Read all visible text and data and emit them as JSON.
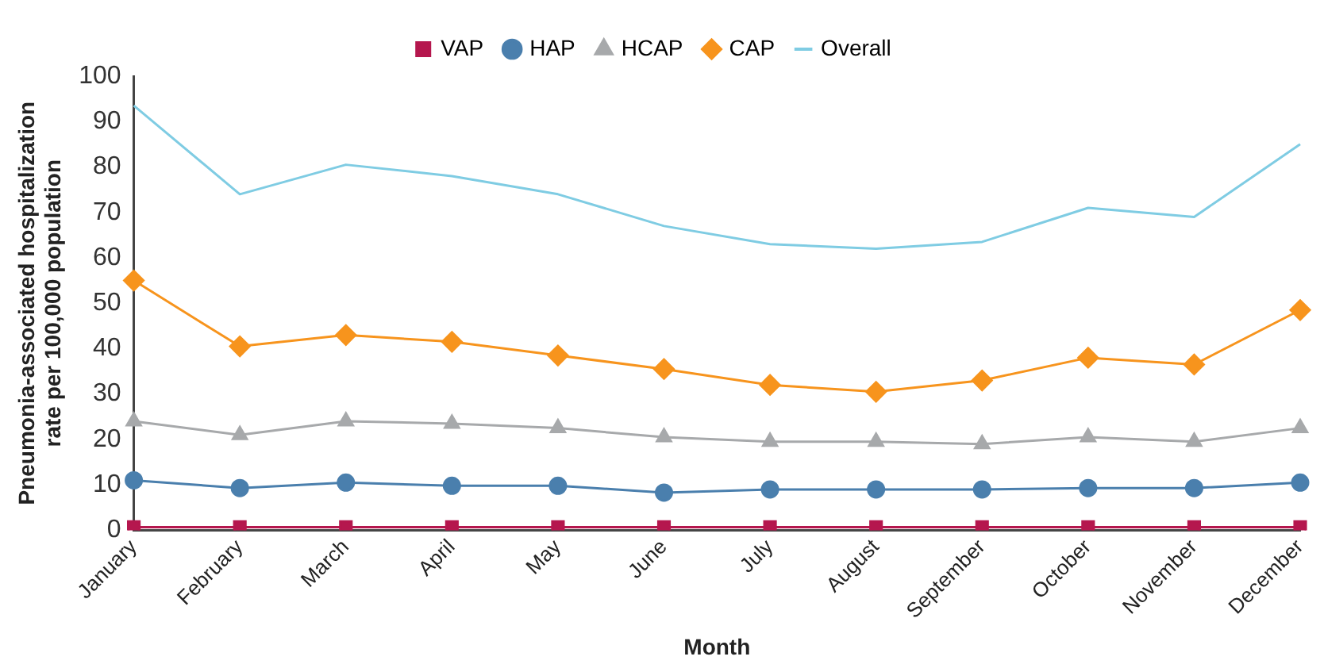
{
  "chart_data": {
    "type": "line",
    "xlabel": "Month",
    "ylabel": "Pneumonia-associated hospitalization rate per 100,000 population",
    "categories": [
      "January",
      "February",
      "March",
      "April",
      "May",
      "June",
      "July",
      "August",
      "September",
      "October",
      "November",
      "December"
    ],
    "ylim": [
      0,
      100
    ],
    "yticks": [
      0,
      10,
      20,
      30,
      40,
      50,
      60,
      70,
      80,
      90,
      100
    ],
    "grid": false,
    "legend": "top",
    "series": [
      {
        "name": "VAP",
        "color": "#b5174e",
        "marker": "square",
        "values": [
          0.7,
          0.7,
          0.7,
          0.7,
          0.7,
          0.7,
          0.7,
          0.7,
          0.7,
          0.7,
          0.7,
          0.7
        ]
      },
      {
        "name": "HAP",
        "color": "#4a7fad",
        "marker": "circle",
        "values": [
          11,
          9.3,
          10.5,
          9.8,
          9.8,
          8.3,
          9,
          9,
          9,
          9.3,
          9.3,
          10.5
        ]
      },
      {
        "name": "HCAP",
        "color": "#a7a9ab",
        "marker": "triangle",
        "values": [
          24,
          21,
          24,
          23.5,
          22.5,
          20.5,
          19.5,
          19.5,
          19,
          20.5,
          19.5,
          22.5
        ]
      },
      {
        "name": "CAP",
        "color": "#f7941d",
        "marker": "diamond",
        "values": [
          55,
          40.5,
          43,
          41.5,
          38.5,
          35.5,
          32,
          30.5,
          33,
          38,
          36.5,
          48.5
        ]
      },
      {
        "name": "Overall",
        "color": "#7fcce3",
        "marker": "none",
        "values": [
          93.5,
          74,
          80.5,
          78,
          74,
          67,
          63,
          62,
          63.5,
          71,
          69,
          85
        ]
      }
    ]
  }
}
